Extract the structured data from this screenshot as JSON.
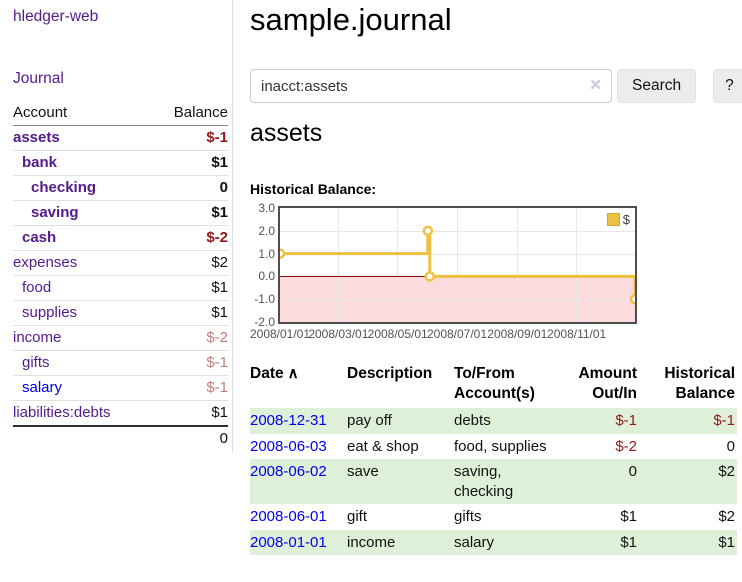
{
  "sidebar": {
    "brand": "hledger-web",
    "journal_link": "Journal",
    "accounts": {
      "col_account": "Account",
      "col_balance": "Balance",
      "rows": [
        {
          "name": "assets",
          "balance": "$-1",
          "depth": 1,
          "bold": true,
          "tone": "neg"
        },
        {
          "name": "bank",
          "balance": "$1",
          "depth": 2,
          "bold": true,
          "tone": ""
        },
        {
          "name": "checking",
          "balance": "0",
          "depth": 3,
          "bold": true,
          "tone": ""
        },
        {
          "name": "saving",
          "balance": "$1",
          "depth": 3,
          "bold": true,
          "tone": ""
        },
        {
          "name": "cash",
          "balance": "$-2",
          "depth": 2,
          "bold": true,
          "tone": "neg"
        },
        {
          "name": "expenses",
          "balance": "$2",
          "depth": 1,
          "bold": false,
          "tone": ""
        },
        {
          "name": "food",
          "balance": "$1",
          "depth": 2,
          "bold": false,
          "tone": ""
        },
        {
          "name": "supplies",
          "balance": "$1",
          "depth": 2,
          "bold": false,
          "tone": ""
        },
        {
          "name": "income",
          "balance": "$-2",
          "depth": 1,
          "bold": false,
          "tone": "soft"
        },
        {
          "name": "gifts",
          "balance": "$-1",
          "depth": 2,
          "bold": false,
          "tone": "soft"
        },
        {
          "name": "salary",
          "balance": "$-1",
          "depth": 2,
          "bold": false,
          "tone": "soft",
          "link_color": "blue"
        },
        {
          "name": "liabilities:debts",
          "balance": "$1",
          "depth": 1,
          "bold": false,
          "tone": ""
        }
      ],
      "total": "0"
    }
  },
  "main": {
    "title": "sample.journal",
    "search": {
      "value": "inacct:assets",
      "clear_icon": "✕",
      "search_label": "Search",
      "help_label": "?"
    },
    "account_heading": "assets",
    "chart_heading": "Historical Balance:"
  },
  "register": {
    "columns": [
      "Date",
      "Description",
      "To/From Account(s)",
      "Amount Out/In",
      "Historical Balance"
    ],
    "sort_icon": "∧",
    "rows": [
      {
        "date": "2008-12-31",
        "description": "pay off",
        "accounts": "debts",
        "amount": "$-1",
        "amount_tone": "neg",
        "balance": "$-1",
        "balance_tone": "neg",
        "highlight": true
      },
      {
        "date": "2008-06-03",
        "description": "eat & shop",
        "accounts": "food, supplies",
        "amount": "$-2",
        "amount_tone": "neg",
        "balance": "0",
        "balance_tone": "",
        "highlight": false
      },
      {
        "date": "2008-06-02",
        "description": "save",
        "accounts": "saving, checking",
        "amount": "0",
        "amount_tone": "",
        "balance": "$2",
        "balance_tone": "",
        "highlight": true
      },
      {
        "date": "2008-06-01",
        "description": "gift",
        "accounts": "gifts",
        "amount": "$1",
        "amount_tone": "",
        "balance": "$2",
        "balance_tone": "",
        "highlight": false
      },
      {
        "date": "2008-01-01",
        "description": "income",
        "accounts": "salary",
        "amount": "$1",
        "amount_tone": "",
        "balance": "$1",
        "balance_tone": "",
        "highlight": true
      }
    ]
  },
  "chart_data": {
    "type": "line",
    "step": true,
    "title": "Historical Balance:",
    "series": [
      {
        "name": "$",
        "color": "#edc240",
        "points": [
          [
            "2008-01-01",
            1
          ],
          [
            "2008-06-01",
            2
          ],
          [
            "2008-06-03",
            0
          ],
          [
            "2008-12-31",
            -1
          ]
        ]
      }
    ],
    "xrange": [
      "2008-01-01",
      "2008-12-31"
    ],
    "xtick_dates": [
      "2008-01-01",
      "2008-03-01",
      "2008-05-01",
      "2008-07-01",
      "2008-09-01",
      "2008-11-01"
    ],
    "xtick_labels": [
      "2008/01/01",
      "2008/03/01",
      "2008/05/01",
      "2008/07/01",
      "2008/09/01",
      "2008/11/01"
    ],
    "ylim": [
      -2,
      3
    ],
    "yticks": [
      3,
      2,
      1,
      0,
      -1,
      -2
    ],
    "ytick_labels": [
      "3.0",
      "2.0",
      "1.0",
      "0.0",
      "-1.0",
      "-2.0"
    ],
    "grid": true,
    "legend": {
      "label": "$",
      "position": "top-right"
    },
    "negative_region_color": "#fbdbdb",
    "zero_line_color": "#8b0000"
  }
}
